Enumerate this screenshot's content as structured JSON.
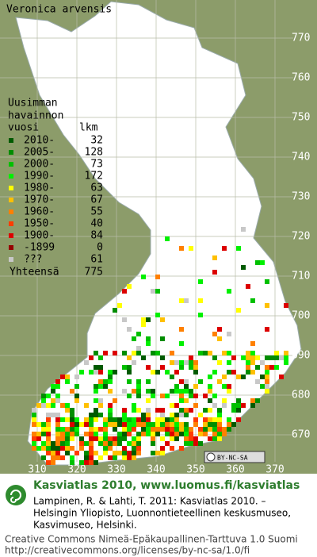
{
  "title": "Veronica arvensis",
  "legend": {
    "heading": [
      "Uusimman",
      "havainnon"
    ],
    "col_labels": [
      "vuosi",
      "lkm"
    ],
    "rows": [
      {
        "label": "2010-",
        "count": 32,
        "color": "#005a00"
      },
      {
        "label": "2005-",
        "count": 128,
        "color": "#008c00"
      },
      {
        "label": "2000-",
        "count": 73,
        "color": "#00c000"
      },
      {
        "label": "1990-",
        "count": 172,
        "color": "#00f000"
      },
      {
        "label": "1980-",
        "count": 63,
        "color": "#ffff00"
      },
      {
        "label": "1970-",
        "count": 67,
        "color": "#ffc000"
      },
      {
        "label": "1960-",
        "count": 55,
        "color": "#ff8000"
      },
      {
        "label": "1950-",
        "count": 40,
        "color": "#ff3c00"
      },
      {
        "label": "1900-",
        "count": 84,
        "color": "#dc0000"
      },
      {
        "label": "-1899",
        "count": 0,
        "color": "#960000"
      },
      {
        "label": "???",
        "count": 61,
        "color": "#c8c8c8"
      }
    ],
    "total_label": "Yhteensä",
    "total": 775
  },
  "grid": {
    "y_labels": [
      770,
      760,
      750,
      740,
      730,
      720,
      710,
      700,
      690,
      680,
      670
    ],
    "x_labels": [
      310,
      320,
      330,
      340,
      350,
      360,
      370
    ]
  },
  "license_badge": "BY-NC-SA",
  "footer": {
    "site": "Kasviatlas 2010, www.luomus.fi/kasviatlas",
    "citation": [
      "Lampinen, R. & Lahti, T. 2011: Kasviatlas 2010. –",
      "Helsingin Yliopisto, Luonnontieteellinen keskusmuseo,",
      "Kasvimuseo, Helsinki."
    ],
    "license": [
      "Creative Commons Nimeä-Epäkaupallinen-Tarttuva 1.0 Suomi",
      "http://creativecommons.org/licenses/by-nc-sa/1.0/fi"
    ]
  }
}
